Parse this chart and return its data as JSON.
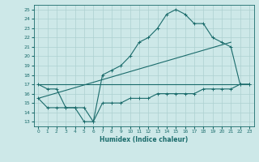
{
  "bg_color": "#cde8e8",
  "line_color": "#1a6b6b",
  "grid_color": "#add0d0",
  "xlabel": "Humidex (Indice chaleur)",
  "xlim": [
    -0.5,
    23.5
  ],
  "ylim": [
    12.5,
    25.5
  ],
  "xticks": [
    0,
    1,
    2,
    3,
    4,
    5,
    6,
    7,
    8,
    9,
    10,
    11,
    12,
    13,
    14,
    15,
    16,
    17,
    18,
    19,
    20,
    21,
    22,
    23
  ],
  "yticks": [
    13,
    14,
    15,
    16,
    17,
    18,
    19,
    20,
    21,
    22,
    23,
    24,
    25
  ],
  "curve1_x": [
    0,
    1,
    2,
    3,
    4,
    5,
    6,
    7,
    8,
    9,
    10,
    11,
    12,
    13,
    14,
    15,
    16,
    17,
    18,
    19,
    20,
    21,
    22,
    23
  ],
  "curve1_y": [
    17.0,
    16.5,
    16.5,
    14.5,
    14.5,
    13.0,
    13.0,
    18.0,
    18.5,
    19.0,
    20.0,
    21.5,
    22.0,
    23.0,
    24.5,
    25.0,
    24.5,
    23.5,
    23.5,
    22.0,
    21.5,
    21.0,
    17.0,
    17.0
  ],
  "curve2_x": [
    0,
    21
  ],
  "curve2_y": [
    15.5,
    21.5
  ],
  "curve3_x": [
    0,
    23
  ],
  "curve3_y": [
    17.0,
    17.0
  ],
  "curve4_x": [
    0,
    1,
    2,
    3,
    4,
    5,
    6,
    7,
    8,
    9,
    10,
    11,
    12,
    13,
    14,
    15,
    16,
    17,
    18,
    19,
    20,
    21,
    22,
    23
  ],
  "curve4_y": [
    15.5,
    14.5,
    14.5,
    14.5,
    14.5,
    14.5,
    13.0,
    15.0,
    15.0,
    15.0,
    15.5,
    15.5,
    15.5,
    16.0,
    16.0,
    16.0,
    16.0,
    16.0,
    16.5,
    16.5,
    16.5,
    16.5,
    17.0,
    17.0
  ]
}
